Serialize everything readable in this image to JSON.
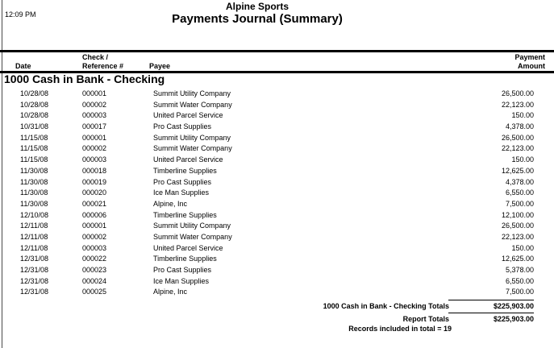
{
  "report": {
    "time": "12:09 PM",
    "company": "Alpine Sports",
    "title": "Payments Journal (Summary)",
    "columns": {
      "date": "Date",
      "check_line1": "Check /",
      "check_line2": "Reference #",
      "payee": "Payee",
      "amount_line1": "Payment",
      "amount_line2": "Amount"
    },
    "section": {
      "heading": "1000 Cash in Bank - Checking",
      "rows": [
        {
          "date": "10/28/08",
          "check": "000001",
          "payee": "Summit Utility Company",
          "amount": "26,500.00"
        },
        {
          "date": "10/28/08",
          "check": "000002",
          "payee": "Summit Water Company",
          "amount": "22,123.00"
        },
        {
          "date": "10/28/08",
          "check": "000003",
          "payee": "United Parcel Service",
          "amount": "150.00"
        },
        {
          "date": "10/31/08",
          "check": "000017",
          "payee": "Pro Cast Supplies",
          "amount": "4,378.00"
        },
        {
          "date": "11/15/08",
          "check": "000001",
          "payee": "Summit Utility Company",
          "amount": "26,500.00"
        },
        {
          "date": "11/15/08",
          "check": "000002",
          "payee": "Summit Water Company",
          "amount": "22,123.00"
        },
        {
          "date": "11/15/08",
          "check": "000003",
          "payee": "United Parcel Service",
          "amount": "150.00"
        },
        {
          "date": "11/30/08",
          "check": "000018",
          "payee": "Timberline Supplies",
          "amount": "12,625.00"
        },
        {
          "date": "11/30/08",
          "check": "000019",
          "payee": "Pro Cast Supplies",
          "amount": "4,378.00"
        },
        {
          "date": "11/30/08",
          "check": "000020",
          "payee": "Ice Man Supplies",
          "amount": "6,550.00"
        },
        {
          "date": "11/30/08",
          "check": "000021",
          "payee": "Alpine, Inc",
          "amount": "7,500.00"
        },
        {
          "date": "12/10/08",
          "check": "000006",
          "payee": "Timberline Supplies",
          "amount": "12,100.00"
        },
        {
          "date": "12/11/08",
          "check": "000001",
          "payee": "Summit Utility Company",
          "amount": "26,500.00"
        },
        {
          "date": "12/11/08",
          "check": "000002",
          "payee": "Summit Water Company",
          "amount": "22,123.00"
        },
        {
          "date": "12/11/08",
          "check": "000003",
          "payee": "United Parcel Service",
          "amount": "150.00"
        },
        {
          "date": "12/31/08",
          "check": "000022",
          "payee": "Timberline Supplies",
          "amount": "12,625.00"
        },
        {
          "date": "12/31/08",
          "check": "000023",
          "payee": "Pro Cast Supplies",
          "amount": "5,378.00"
        },
        {
          "date": "12/31/08",
          "check": "000024",
          "payee": "Ice Man Supplies",
          "amount": "6,550.00"
        },
        {
          "date": "12/31/08",
          "check": "000025",
          "payee": "Alpine, Inc",
          "amount": "7,500.00"
        }
      ],
      "totals_label": "1000 Cash in Bank - Checking Totals",
      "totals_amount": "$225,903.00"
    },
    "report_totals_label": "Report Totals",
    "report_totals_amount": "$225,903.00",
    "records_note": "Records included in total = 19"
  }
}
